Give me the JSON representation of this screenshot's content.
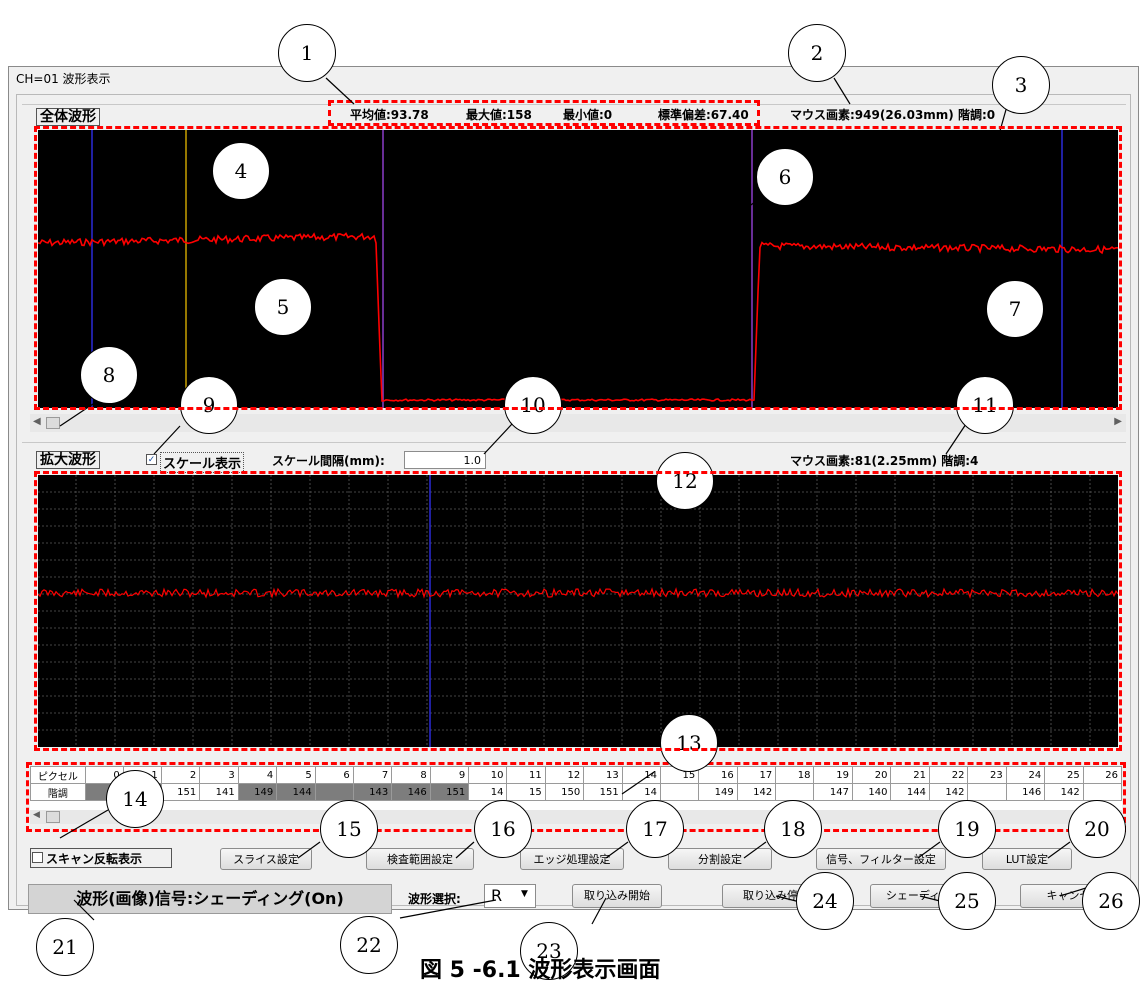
{
  "window": {
    "title": "CH=01 波形表示"
  },
  "overview": {
    "label": "全体波形",
    "stats": {
      "mean": "平均値:93.78",
      "max": "最大値:158",
      "min": "最小値:0",
      "std": "標準偏差:67.40"
    },
    "mouse_info": "マウス画素:949(26.03mm) 階調:0"
  },
  "zoom": {
    "label": "拡大波形",
    "scale_checkbox_label": "スケール表示",
    "scale_checked": true,
    "scale_interval_label": "スケール間隔(mm):",
    "scale_interval_value": "1.0",
    "mouse_info": "マウス画素:81(2.25mm) 階調:4"
  },
  "pixel_table": {
    "row_labels": [
      "ピクセル",
      "階調"
    ],
    "pixels": [
      "0",
      "1",
      "2",
      "3",
      "4",
      "5",
      "6",
      "7",
      "8",
      "9",
      "10",
      "11",
      "12",
      "13",
      "14",
      "15",
      "16",
      "17",
      "18",
      "19",
      "20",
      "21",
      "22",
      "23",
      "24",
      "25",
      "26"
    ],
    "levels": [
      "",
      "",
      "151",
      "141",
      "149",
      "144",
      "",
      "143",
      "146",
      "151",
      "14",
      "15",
      "150",
      "151",
      "14",
      "",
      "149",
      "142",
      "",
      "147",
      "140",
      "144",
      "142",
      "",
      "146",
      "142",
      ""
    ]
  },
  "controls": {
    "scan_reverse_label": "スキャン反転表示",
    "status_text": "波形(画像)信号:シェーディング(On)",
    "waveform_select_label": "波形選択:",
    "waveform_select_value": "R",
    "buttons": {
      "slice": "スライス設定",
      "inspection_range": "検査範囲設定",
      "edge": "エッジ処理設定",
      "division": "分割設定",
      "signal_filter": "信号、フィルター設定",
      "lut": "LUT設定",
      "capture_start": "取り込み開始",
      "capture_stop": "取り込み停止",
      "shading": "シェーディング",
      "cancel": "キャンセル"
    }
  },
  "callouts": [
    "1",
    "2",
    "3",
    "4",
    "5",
    "6",
    "7",
    "8",
    "9",
    "10",
    "11",
    "12",
    "13",
    "14",
    "15",
    "16",
    "17",
    "18",
    "19",
    "20",
    "21",
    "22",
    "23",
    "24",
    "25",
    "26"
  ],
  "caption": "図 5 -6.1 波形表示画面",
  "colors": {
    "waveform": "#ff0000",
    "cursor_blue": "#2a2ad8",
    "cursor_yellow": "#c8a000",
    "cursor_purple": "#8a3cc8",
    "callout_dash": "#ff0000"
  }
}
